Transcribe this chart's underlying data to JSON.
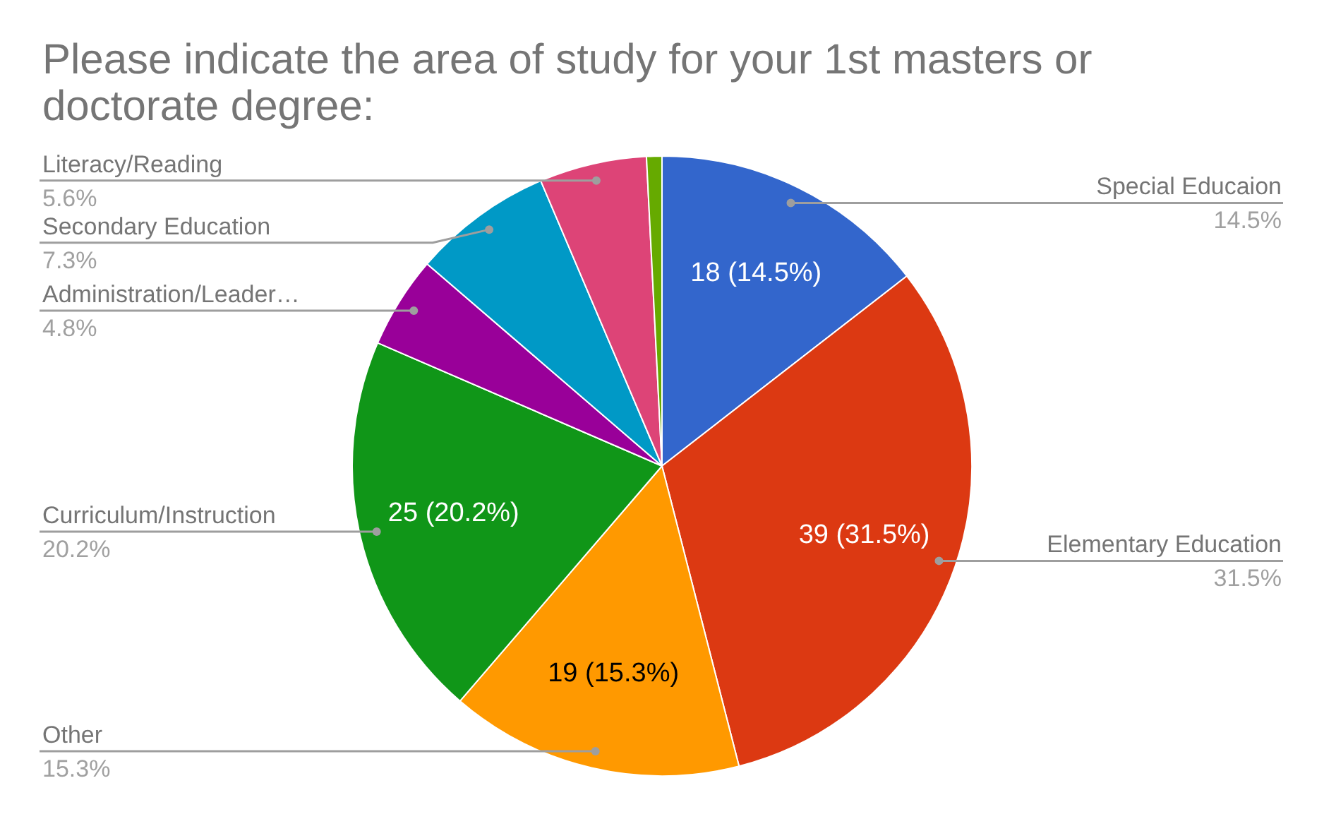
{
  "chart_data": {
    "type": "pie",
    "title": "Please indicate the area of study for your 1st masters or doctorate degree:",
    "categories": [
      "Special Educaion",
      "Elementary Education",
      "Other",
      "Curriculum/Instruction",
      "Administration/Leader…",
      "Secondary Education",
      "Literacy/Reading",
      null
    ],
    "values": [
      14.5,
      31.5,
      15.3,
      20.2,
      4.8,
      7.3,
      5.6,
      0.8
    ],
    "colors": [
      "#3366cc",
      "#dc3912",
      "#ff9900",
      "#109618",
      "#990099",
      "#0099c6",
      "#dd4477",
      "#66aa00"
    ],
    "value_labels": [
      "14.5%",
      "31.5%",
      "15.3%",
      "20.2%",
      "4.8%",
      "7.3%",
      "5.6%",
      null
    ],
    "annotations": [
      {
        "text": "18 (14.5%)",
        "x": "Special Educaion"
      },
      {
        "text": "39 (31.5%)",
        "x": "Elementary Education"
      },
      {
        "text": "19 (15.3%)",
        "x": "Other"
      },
      {
        "text": "25 (20.2%)",
        "x": "Curriculum/Instruction"
      }
    ],
    "legend": false
  }
}
